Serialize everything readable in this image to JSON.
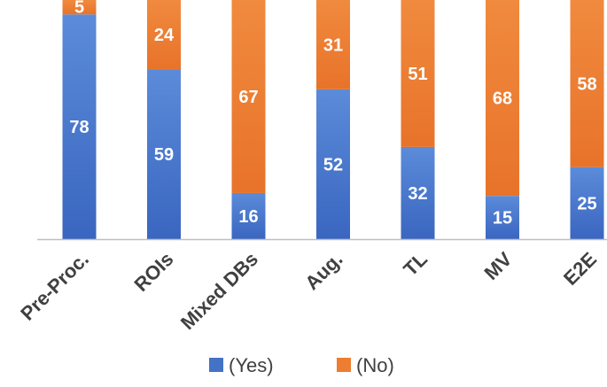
{
  "chart_data": {
    "type": "bar",
    "stacked": true,
    "categories": [
      "Pre-Proc.",
      "ROIs",
      "Mixed DBs",
      "Aug.",
      "TL",
      "MV",
      "E2E"
    ],
    "series": [
      {
        "name": "(Yes)",
        "color": "#4472C4",
        "values": [
          78,
          59,
          16,
          52,
          32,
          15,
          25
        ]
      },
      {
        "name": "(No)",
        "color": "#ED7D31",
        "values": [
          5,
          24,
          67,
          31,
          51,
          68,
          58
        ]
      }
    ],
    "ylim": [
      0,
      83
    ],
    "grid": false,
    "legend": "bottom",
    "title": "",
    "xlabel": "",
    "ylabel": ""
  }
}
